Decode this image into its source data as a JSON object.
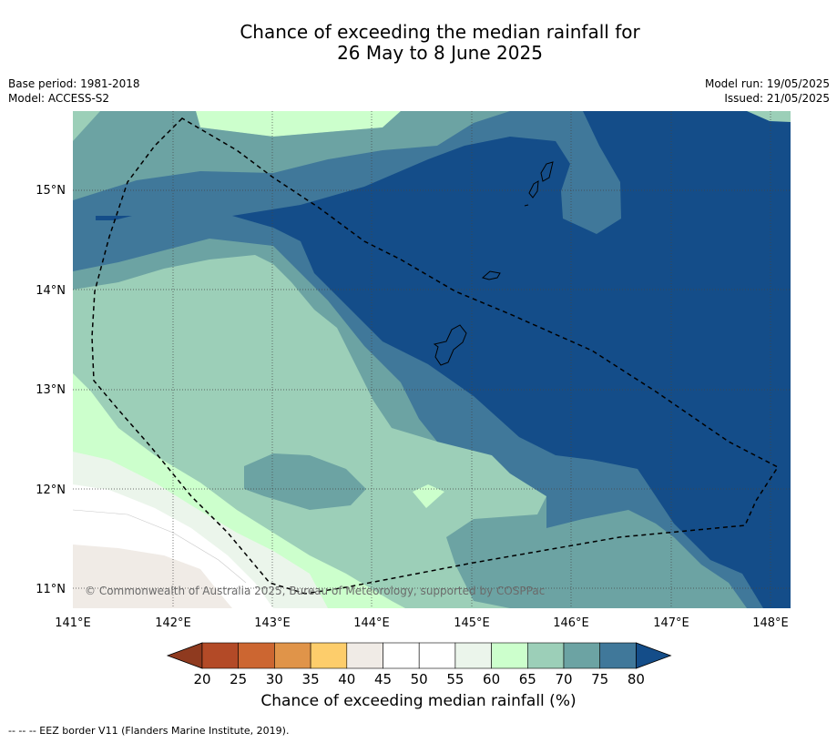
{
  "title_line1": "Chance of exceeding the median rainfall for",
  "title_line2": "26 May to 8 June 2025",
  "meta": {
    "base_period": "Base period: 1981-2018",
    "model": "Model: ACCESS-S2",
    "model_run": "Model run: 19/05/2025",
    "issued": "Issued: 21/05/2025"
  },
  "map": {
    "lat_labels": [
      "15°N",
      "14°N",
      "13°N",
      "12°N",
      "11°N"
    ],
    "lon_labels": [
      "141°E",
      "142°E",
      "143°E",
      "144°E",
      "145°E",
      "146°E",
      "147°E",
      "148°E"
    ],
    "copyright": "© Commonwealth of Australia 2025, Bureau of Meteorology, supported by COSPPac",
    "colors": {
      "c20_25": "#b34a27",
      "c25_30": "#cc6631",
      "c30_35": "#e09449",
      "c35_40": "#fdcd6b",
      "c40_45": "#f0ebe6",
      "c45_55": "#ffffff",
      "c55_60": "#ebf5eb",
      "c60_65": "#ccffcc",
      "c65_70": "#9ccfb8",
      "c70_75": "#6ca3a3",
      "c75_80": "#40789a",
      "c80": "#144d89"
    }
  },
  "colorbar": {
    "title": "Chance of exceeding median rainfall (%)",
    "labels": [
      "20",
      "25",
      "30",
      "35",
      "40",
      "45",
      "50",
      "55",
      "60",
      "65",
      "70",
      "75",
      "80"
    ],
    "colors": [
      "#b34a27",
      "#cc6631",
      "#e09449",
      "#fdcd6b",
      "#f0ebe6",
      "#ffffff",
      "#ffffff",
      "#ebf5eb",
      "#ccffcc",
      "#9ccfb8",
      "#6ca3a3",
      "#40789a"
    ],
    "under_color": "#8f3a1f",
    "over_color": "#144d89"
  },
  "footer": "--  --  -- EEZ border V11 (Flanders Marine Institute, 2019)."
}
